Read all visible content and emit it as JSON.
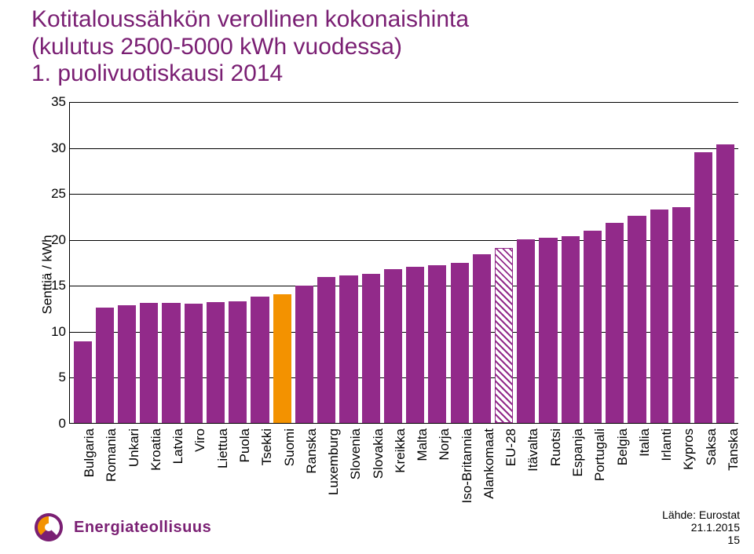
{
  "title": {
    "line1": "Kotitaloussähkön verollinen kokonaishinta",
    "line2": "(kulutus 2500-5000 kWh vuodessa)",
    "line3": "1. puolivuotiskausi 2014",
    "color": "#7a1f73",
    "fontsize": 30
  },
  "chart": {
    "type": "bar",
    "ylabel": "Senttiä / kWh",
    "ylim": [
      0,
      35
    ],
    "ytick_step": 5,
    "yticks": [
      0,
      5,
      10,
      15,
      20,
      25,
      30,
      35
    ],
    "grid_color": "#000000",
    "background_color": "#ffffff",
    "bar_width": 0.82,
    "default_bar_color": "#922a8a",
    "highlight_bar_color": "#f39200",
    "hatched_bar": "EU-28",
    "label_fontsize": 17,
    "categories": [
      "Bulgaria",
      "Romania",
      "Unkari",
      "Kroatia",
      "Latvia",
      "Viro",
      "Liettua",
      "Puola",
      "Tsekki",
      "Suomi",
      "Ranska",
      "Luxemburg",
      "Slovenia",
      "Slovakia",
      "Kreikka",
      "Malta",
      "Norja",
      "Iso-Britannia",
      "Alankomaat",
      "EU-28",
      "Itävalta",
      "Ruotsi",
      "Espanja",
      "Portugali",
      "Belgia",
      "Italia",
      "Irlanti",
      "Kypros",
      "Saksa",
      "Tanska"
    ],
    "values": [
      8.9,
      12.6,
      12.8,
      13.1,
      13.1,
      13.0,
      13.2,
      13.3,
      13.8,
      14.0,
      15.0,
      15.9,
      16.1,
      16.3,
      16.8,
      17.0,
      17.2,
      17.5,
      18.4,
      19.1,
      20.0,
      20.2,
      20.4,
      21.0,
      21.8,
      22.6,
      23.3,
      23.5,
      29.5,
      30.4
    ],
    "bar_styles": [
      {
        "color": "#922a8a"
      },
      {
        "color": "#922a8a"
      },
      {
        "color": "#922a8a"
      },
      {
        "color": "#922a8a"
      },
      {
        "color": "#922a8a"
      },
      {
        "color": "#922a8a"
      },
      {
        "color": "#922a8a"
      },
      {
        "color": "#922a8a"
      },
      {
        "color": "#922a8a"
      },
      {
        "color": "#f39200"
      },
      {
        "color": "#922a8a"
      },
      {
        "color": "#922a8a"
      },
      {
        "color": "#922a8a"
      },
      {
        "color": "#922a8a"
      },
      {
        "color": "#922a8a"
      },
      {
        "color": "#922a8a"
      },
      {
        "color": "#922a8a"
      },
      {
        "color": "#922a8a"
      },
      {
        "color": "#922a8a"
      },
      {
        "color": "#922a8a",
        "hatched": true,
        "border": "#922a8a"
      },
      {
        "color": "#922a8a"
      },
      {
        "color": "#922a8a"
      },
      {
        "color": "#922a8a"
      },
      {
        "color": "#922a8a"
      },
      {
        "color": "#922a8a"
      },
      {
        "color": "#922a8a"
      },
      {
        "color": "#922a8a"
      },
      {
        "color": "#922a8a"
      },
      {
        "color": "#922a8a"
      },
      {
        "color": "#922a8a"
      }
    ]
  },
  "footer": {
    "source": "Lähde: Eurostat",
    "date": "21.1.2015",
    "page": "15"
  },
  "logo": {
    "text": "Energiateollisuus",
    "primary_color": "#7a1f73",
    "accent_color": "#f39200"
  }
}
